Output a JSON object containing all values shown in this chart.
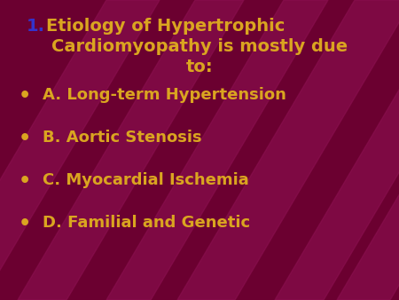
{
  "background_color": "#6B0030",
  "stripe_color": "#8B1050",
  "title_number_color": "#3333CC",
  "title_text_color": "#DAA520",
  "bullet_color": "#DAA520",
  "title_number": "1.",
  "title_line1": "1.  Etiology of Hypertrophic",
  "title_line2": "Cardiomyopathy is mostly due",
  "title_line3": "to:",
  "bullet_items": [
    "A. Long-term Hypertension",
    "B. Aortic Stenosis",
    "C. Myocardial Ischemia",
    "D. Familial and Genetic"
  ],
  "title_fontsize": 14,
  "bullet_fontsize": 13,
  "fig_width": 4.5,
  "fig_height": 3.38,
  "dpi": 100
}
